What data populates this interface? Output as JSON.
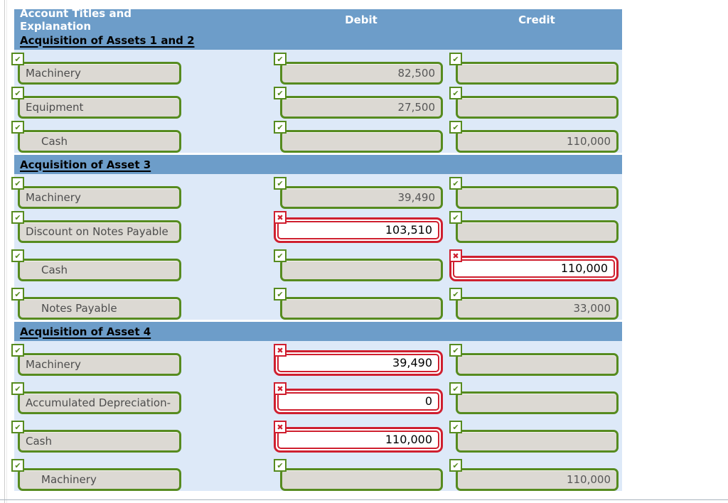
{
  "columns": {
    "account": "Account Titles and Explanation",
    "debit": "Debit",
    "credit": "Credit"
  },
  "icons": {
    "check": "✔",
    "cross": "✖"
  },
  "colors": {
    "header_blue": "#6d9dc9",
    "body_light_blue": "#dde9f8",
    "correct_green": "#568b1f",
    "incorrect_red": "#cf1f2f",
    "field_gray": "#dcd9d3"
  },
  "sections": [
    {
      "title": "Acquisition of Assets 1 and 2",
      "rows": [
        {
          "account": {
            "label": "Machinery",
            "indent": false,
            "status": "correct"
          },
          "debit": {
            "value": "82,500",
            "status": "correct"
          },
          "credit": {
            "value": "",
            "status": "correct"
          }
        },
        {
          "account": {
            "label": "Equipment",
            "indent": false,
            "status": "correct"
          },
          "debit": {
            "value": "27,500",
            "status": "correct"
          },
          "credit": {
            "value": "",
            "status": "correct"
          }
        },
        {
          "account": {
            "label": "Cash",
            "indent": true,
            "status": "correct"
          },
          "debit": {
            "value": "",
            "status": "correct"
          },
          "credit": {
            "value": "110,000",
            "status": "correct"
          }
        }
      ]
    },
    {
      "title": "Acquisition of Asset 3",
      "rows": [
        {
          "account": {
            "label": "Machinery",
            "indent": false,
            "status": "correct"
          },
          "debit": {
            "value": "39,490",
            "status": "correct"
          },
          "credit": {
            "value": "",
            "status": "correct"
          }
        },
        {
          "account": {
            "label": "Discount on Notes Payable",
            "indent": false,
            "status": "correct"
          },
          "debit": {
            "value": "103,510",
            "status": "incorrect"
          },
          "credit": {
            "value": "",
            "status": "correct"
          }
        },
        {
          "account": {
            "label": "Cash",
            "indent": true,
            "status": "correct"
          },
          "debit": {
            "value": "",
            "status": "correct"
          },
          "credit": {
            "value": "110,000",
            "status": "incorrect"
          }
        },
        {
          "account": {
            "label": "Notes Payable",
            "indent": true,
            "status": "correct"
          },
          "debit": {
            "value": "",
            "status": "correct"
          },
          "credit": {
            "value": "33,000",
            "status": "correct"
          }
        }
      ]
    },
    {
      "title": "Acquisition of Asset 4",
      "rows": [
        {
          "account": {
            "label": "Machinery",
            "indent": false,
            "status": "correct"
          },
          "debit": {
            "value": "39,490",
            "status": "incorrect"
          },
          "credit": {
            "value": "",
            "status": "correct"
          }
        },
        {
          "account": {
            "label": "Accumulated Depreciation-",
            "indent": false,
            "status": "correct"
          },
          "debit": {
            "value": "0",
            "status": "incorrect"
          },
          "credit": {
            "value": "",
            "status": "correct"
          }
        },
        {
          "account": {
            "label": "Cash",
            "indent": false,
            "status": "correct"
          },
          "debit": {
            "value": "110,000",
            "status": "incorrect"
          },
          "credit": {
            "value": "",
            "status": "correct"
          }
        },
        {
          "account": {
            "label": "Machinery",
            "indent": true,
            "status": "correct"
          },
          "debit": {
            "value": "",
            "status": "correct"
          },
          "credit": {
            "value": "110,000",
            "status": "correct"
          }
        }
      ]
    }
  ]
}
